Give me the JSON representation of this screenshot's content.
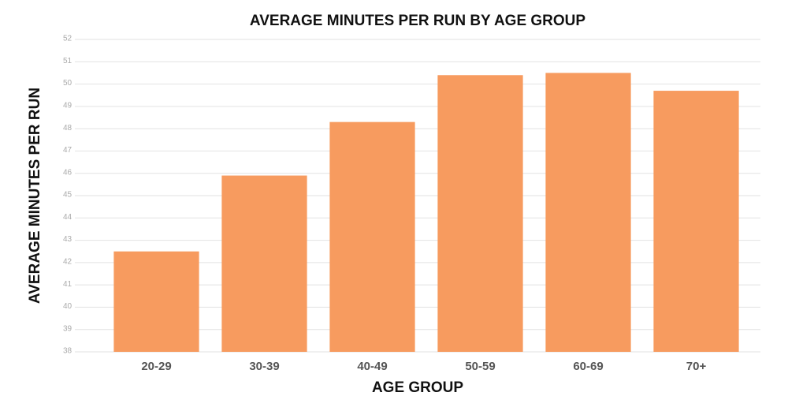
{
  "chart_data": {
    "type": "bar",
    "title": "AVERAGE MINUTES PER RUN BY AGE GROUP",
    "x_label": "AGE GROUP",
    "y_label": "AVERAGE MINUTES PER RUN",
    "categories": [
      "20-29",
      "30-39",
      "40-49",
      "50-59",
      "60-69",
      "70+"
    ],
    "values": [
      42.5,
      45.9,
      48.3,
      50.4,
      50.5,
      49.7
    ],
    "color": "#f79b5f",
    "ylim": [
      38,
      52
    ],
    "yticks": [
      38,
      39,
      40,
      41,
      42,
      43,
      44,
      45,
      46,
      47,
      48,
      49,
      50,
      51,
      52
    ],
    "grid": true
  }
}
